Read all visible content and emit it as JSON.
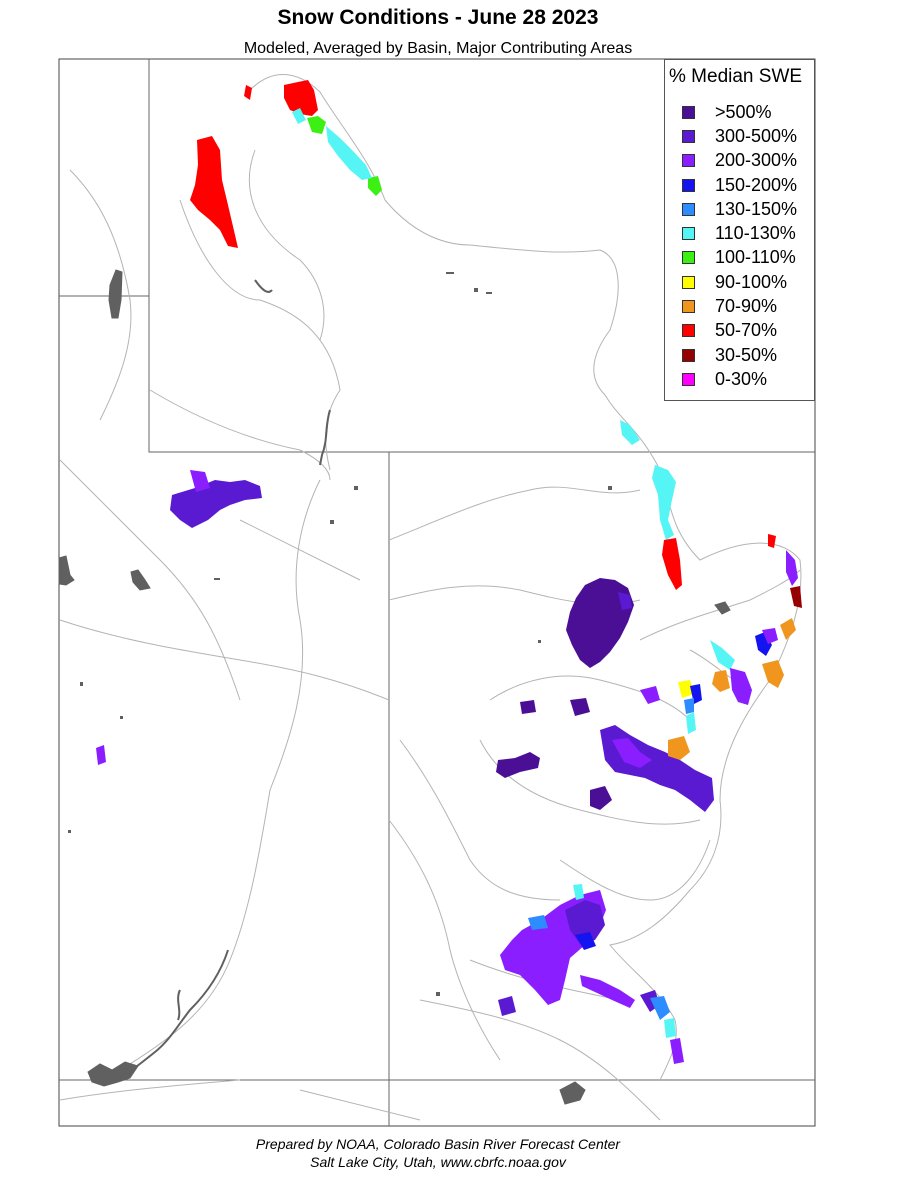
{
  "map": {
    "title": "Snow Conditions - June 28 2023",
    "subtitle": "Modeled, Averaged by Basin, Major Contributing Areas"
  },
  "legend": {
    "title": "% Median SWE",
    "items": [
      {
        "label": ">500%",
        "color": "#4b0f96"
      },
      {
        "label": "300-500%",
        "color": "#5a1ad2"
      },
      {
        "label": "200-300%",
        "color": "#8a1eff"
      },
      {
        "label": "150-200%",
        "color": "#1414f0"
      },
      {
        "label": "130-150%",
        "color": "#2d8cff"
      },
      {
        "label": "110-130%",
        "color": "#55f5f5"
      },
      {
        "label": "100-110%",
        "color": "#3cf014"
      },
      {
        "label": "90-100%",
        "color": "#ffff00"
      },
      {
        "label": "70-90%",
        "color": "#f0961e"
      },
      {
        "label": "50-70%",
        "color": "#ff0000"
      },
      {
        "label": "30-50%",
        "color": "#960000"
      },
      {
        "label": "0-30%",
        "color": "#ff00ff"
      }
    ]
  },
  "colors": {
    "state_border": "#666666",
    "basin_line": "#b4b4b4",
    "water": "#606060",
    "frame": "#444444"
  },
  "credits": {
    "line1": "Prepared by NOAA, Colorado Basin River Forecast Center",
    "line2": "Salt Lake City, Utah, www.cbrfc.noaa.gov"
  }
}
